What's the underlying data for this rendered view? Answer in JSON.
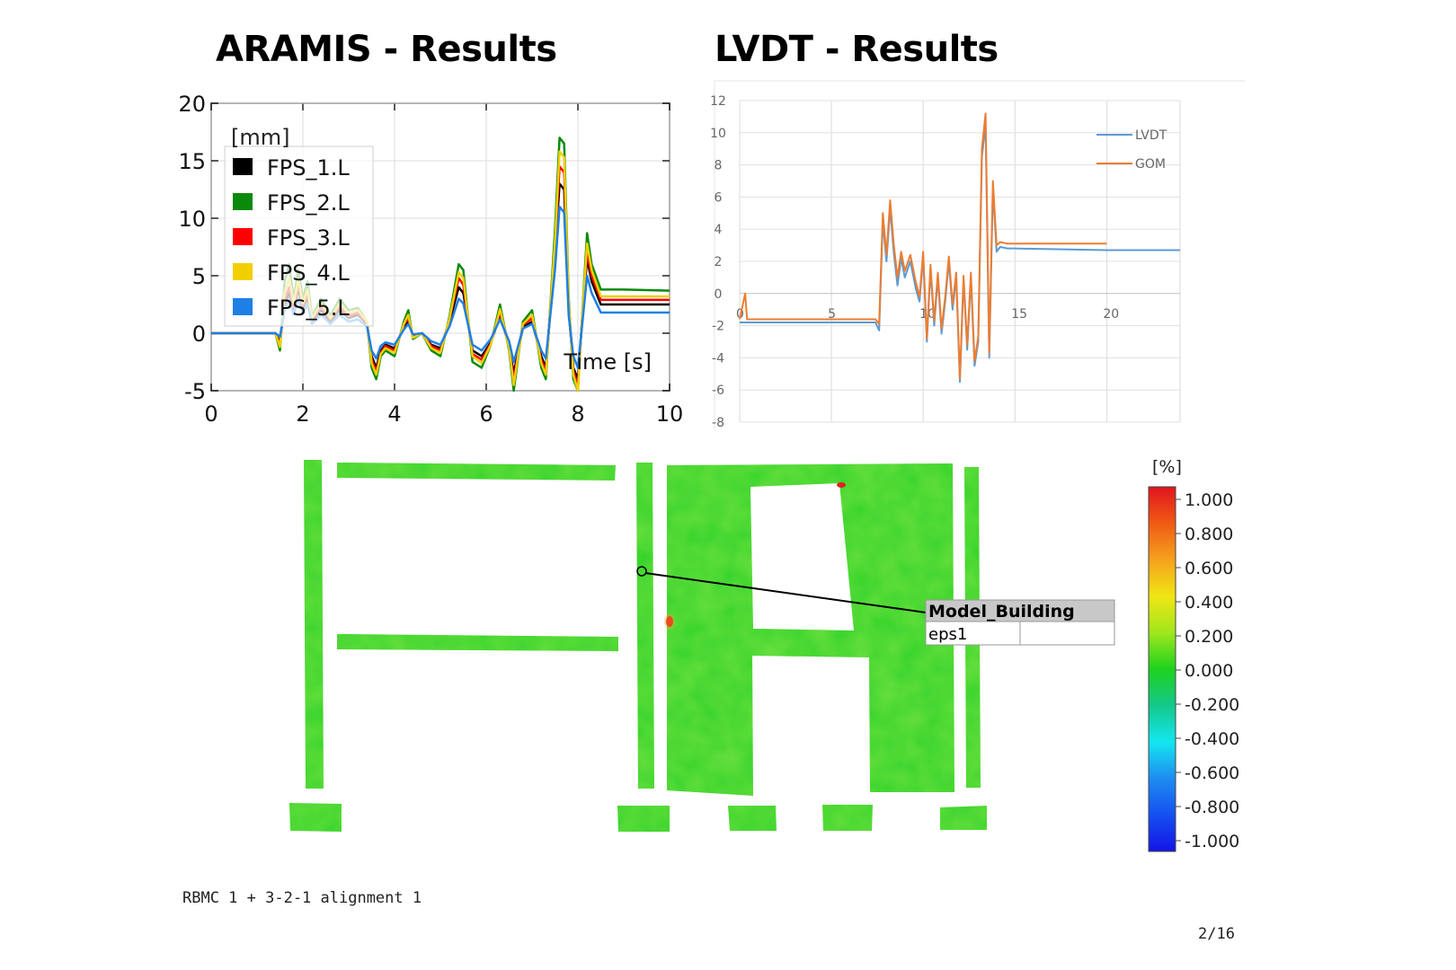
{
  "titles": {
    "aramis": "ARAMIS - Results",
    "lvdt": "LVDT - Results"
  },
  "chart_data": [
    {
      "type": "line",
      "title": "ARAMIS - Results",
      "unit_label": "[mm]",
      "xlabel": "Time [s]",
      "ylabel": "",
      "xlim": [
        0,
        10
      ],
      "ylim": [
        -5,
        20
      ],
      "xticks": [
        0,
        2,
        4,
        6,
        8,
        10
      ],
      "yticks": [
        -5,
        0,
        5,
        10,
        15,
        20
      ],
      "grid": true,
      "legend": "top-left",
      "x": [
        0,
        1.4,
        1.5,
        1.6,
        1.7,
        1.8,
        1.9,
        2.0,
        2.1,
        2.2,
        2.4,
        2.6,
        2.8,
        3.0,
        3.2,
        3.4,
        3.5,
        3.6,
        3.7,
        3.8,
        4.0,
        4.2,
        4.3,
        4.4,
        4.6,
        4.8,
        5.0,
        5.2,
        5.4,
        5.5,
        5.7,
        5.9,
        6.1,
        6.3,
        6.5,
        6.6,
        6.8,
        7.0,
        7.2,
        7.3,
        7.5,
        7.6,
        7.7,
        7.8,
        7.9,
        8.0,
        8.1,
        8.2,
        8.3,
        8.5,
        8.7,
        9.0,
        10.0
      ],
      "series": [
        {
          "name": "FPS_1.L",
          "color": "#000000",
          "values": [
            0,
            0,
            -0.8,
            2.5,
            3.5,
            2,
            3.8,
            2.2,
            3,
            1,
            2,
            1,
            2,
            1.3,
            1.6,
            0.8,
            -2,
            -3,
            -1.5,
            -1,
            -1.3,
            0.5,
            1,
            -0.2,
            0,
            -1,
            -1.3,
            1,
            4,
            3.5,
            -1.5,
            -2,
            -0.8,
            1.5,
            -1,
            -3.5,
            0.5,
            1,
            -2,
            -3,
            7,
            13,
            12.5,
            2,
            -3,
            -4,
            1.5,
            6.5,
            4.5,
            2.5,
            2.5,
            2.5,
            2.5
          ]
        },
        {
          "name": "FPS_2.L",
          "color": "#0a8a0a",
          "values": [
            0,
            0,
            -1.5,
            4.5,
            6,
            3,
            5.5,
            3,
            4.5,
            1.5,
            3,
            1.5,
            3,
            2,
            2.2,
            1,
            -3,
            -4,
            -2,
            -1.5,
            -2,
            1,
            2,
            -0.5,
            0,
            -1.5,
            -2,
            1.5,
            6,
            5.5,
            -2.5,
            -3,
            -1,
            2.5,
            -1.5,
            -5,
            1,
            2,
            -3,
            -4,
            9,
            17,
            16.5,
            3,
            -4,
            -5.5,
            2,
            8.7,
            6,
            3.8,
            3.8,
            3.8,
            3.7
          ]
        },
        {
          "name": "FPS_3.L",
          "color": "#ff0000",
          "values": [
            0,
            0,
            -1,
            3,
            4,
            2.3,
            4.2,
            2.4,
            3.4,
            1.2,
            2.3,
            1.2,
            2.3,
            1.5,
            1.8,
            0.9,
            -2.3,
            -3.3,
            -1.7,
            -1.1,
            -1.5,
            0.7,
            1.3,
            -0.3,
            0,
            -1.1,
            -1.5,
            1.2,
            4.8,
            4.2,
            -1.8,
            -2.3,
            -0.9,
            1.8,
            -1.2,
            -4,
            0.7,
            1.3,
            -2.3,
            -3.3,
            7.5,
            14.5,
            14,
            2.3,
            -3.3,
            -4.5,
            1.7,
            7,
            5,
            2.9,
            2.9,
            2.9,
            2.9
          ]
        },
        {
          "name": "FPS_4.L",
          "color": "#f2cf00",
          "values": [
            0,
            0,
            -1.2,
            3.5,
            4.8,
            2.6,
            4.7,
            2.6,
            3.8,
            1.3,
            2.6,
            1.3,
            2.6,
            1.7,
            2,
            1,
            -2.6,
            -3.6,
            -1.8,
            -1.3,
            -1.7,
            0.8,
            1.6,
            -0.4,
            0,
            -1.3,
            -1.7,
            1.3,
            5.3,
            4.8,
            -2,
            -2.6,
            -1,
            2.1,
            -1.3,
            -4.5,
            0.8,
            1.6,
            -2.6,
            -3.6,
            8,
            15.8,
            15.3,
            2.6,
            -3.6,
            -5,
            1.8,
            7.8,
            5.5,
            3.2,
            3.2,
            3.2,
            3.2
          ]
        },
        {
          "name": "FPS_5.L",
          "color": "#1e7fe6",
          "values": [
            0,
            0,
            -0.3,
            2,
            3,
            1.6,
            3,
            1.8,
            2.5,
            0.8,
            1.6,
            0.8,
            1.6,
            1,
            1.2,
            0.6,
            -1.5,
            -2.2,
            -1.1,
            -0.8,
            -1,
            0.3,
            0.8,
            -0.1,
            0,
            -0.7,
            -1,
            0.6,
            3,
            2.6,
            -1,
            -1.5,
            -0.5,
            1.2,
            -0.7,
            -2.5,
            0.4,
            0.8,
            -1.5,
            -2.2,
            5.5,
            11,
            10.5,
            1.5,
            -2,
            -3,
            1,
            5,
            3.5,
            1.8,
            1.8,
            1.8,
            1.8
          ]
        }
      ]
    },
    {
      "type": "line",
      "title": "LVDT - Results",
      "xlim": [
        0,
        24
      ],
      "ylim": [
        -8,
        12
      ],
      "xticks": [
        0,
        5,
        10,
        15,
        20
      ],
      "yticks": [
        12,
        10,
        8,
        6,
        4,
        2,
        0,
        -2,
        -4,
        -6,
        -8
      ],
      "grid": true,
      "legend": "top-right",
      "series": [
        {
          "name": "LVDT",
          "color": "#5b9bd5",
          "x": [
            0,
            7.4,
            7.6,
            7.8,
            8.0,
            8.2,
            8.4,
            8.6,
            8.8,
            9.0,
            9.3,
            9.6,
            9.8,
            10.0,
            10.2,
            10.4,
            10.6,
            10.8,
            11.0,
            11.2,
            11.4,
            11.6,
            11.8,
            12.0,
            12.2,
            12.4,
            12.6,
            12.8,
            13.0,
            13.2,
            13.4,
            13.6,
            13.8,
            14.0,
            14.2,
            14.6,
            15,
            20,
            24
          ],
          "values": [
            -1.8,
            -1.8,
            -2.3,
            4.5,
            2,
            5.3,
            2.5,
            0.5,
            2.2,
            1,
            2,
            0.3,
            -0.5,
            2.3,
            -3,
            1.5,
            -2,
            1,
            -2.5,
            -0.5,
            2,
            -1,
            1,
            -5.5,
            0.8,
            -3.5,
            1,
            -4.5,
            -3,
            8.5,
            10.5,
            -4,
            6.5,
            2.6,
            2.9,
            2.8,
            2.8,
            2.7,
            2.7
          ]
        },
        {
          "name": "GOM",
          "color": "#ed7d31",
          "x": [
            0,
            0.3,
            0.4,
            7.4,
            7.6,
            7.8,
            8.0,
            8.2,
            8.4,
            8.6,
            8.8,
            9.0,
            9.3,
            9.6,
            9.8,
            10.0,
            10.2,
            10.4,
            10.6,
            10.8,
            11.0,
            11.2,
            11.4,
            11.6,
            11.8,
            12.0,
            12.2,
            12.4,
            12.6,
            12.8,
            13.0,
            13.2,
            13.4,
            13.6,
            13.8,
            14.0,
            14.2,
            14.6,
            15,
            20
          ],
          "values": [
            -1.6,
            0,
            -1.6,
            -1.6,
            -1.9,
            5,
            2.4,
            5.8,
            3,
            1,
            2.6,
            1.4,
            2.4,
            0.7,
            -0.2,
            2.6,
            -2.8,
            1.8,
            -1.7,
            1.3,
            -2.2,
            -0.2,
            2.3,
            -0.7,
            1.3,
            -5.3,
            1.1,
            -3.2,
            1.3,
            -4.2,
            -2.7,
            9,
            11.2,
            -3.7,
            7,
            3,
            3.2,
            3.1,
            3.1,
            3.1
          ]
        }
      ]
    }
  ],
  "strain_map": {
    "callout_title": "Model_Building",
    "callout_label": "eps1",
    "callout_value": "",
    "unit": "[%]",
    "legend_values": [
      "1.000",
      "0.800",
      "0.600",
      "0.400",
      "0.200",
      "0.000",
      "-0.200",
      "-0.400",
      "-0.600",
      "-0.800",
      "-1.000"
    ],
    "colors": {
      "fill": "#2ad32a",
      "hot": "#e02020",
      "warm": "#f2a020"
    }
  },
  "footer": {
    "caption": "RBMC 1 + 3-2-1 alignment 1",
    "page": "2/16"
  }
}
